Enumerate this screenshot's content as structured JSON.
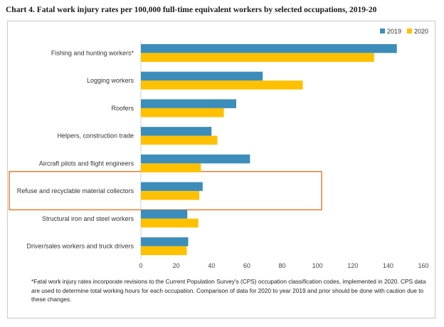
{
  "title": "Chart 4. Fatal work injury rates per 100,000 full-time equivalent workers by selected occupations, 2019-20",
  "chart_data": {
    "type": "bar",
    "orientation": "horizontal",
    "categories": [
      "Fishing and hunting workers*",
      "Logging workers",
      "Roofers",
      "Helpers, construction trade",
      "Aircraft pilots and flight engineers",
      "Refuse and recyclable material collectors",
      "Structural iron and steel workers",
      "Driver/sales workers and truck drivers"
    ],
    "series": [
      {
        "name": "2019",
        "color": "#3c8dba",
        "values": [
          145.0,
          69.0,
          54.0,
          40.0,
          61.8,
          35.0,
          26.3,
          26.8
        ]
      },
      {
        "name": "2020",
        "color": "#ffc000",
        "values": [
          132.1,
          91.7,
          47.0,
          43.3,
          34.0,
          33.1,
          32.5,
          26.0
        ]
      }
    ],
    "xlim": [
      0,
      160
    ],
    "xticks": [
      "0",
      "20",
      "40",
      "60",
      "80",
      "100",
      "120",
      "140",
      "160"
    ],
    "highlighted_category": "Refuse and recyclable material collectors",
    "highlight_color": "#ed7d31",
    "legend_position": "top-right"
  },
  "footnote": "*Fatal work injury rates incorporate revisions to the Current Population Survey's (CPS) occupation classification codes, implemented in 2020. CPS data are used to determine total working hours for each occupation. Comparison of data for 2020 to year 2019 and prior should be done with caution due to these changes."
}
